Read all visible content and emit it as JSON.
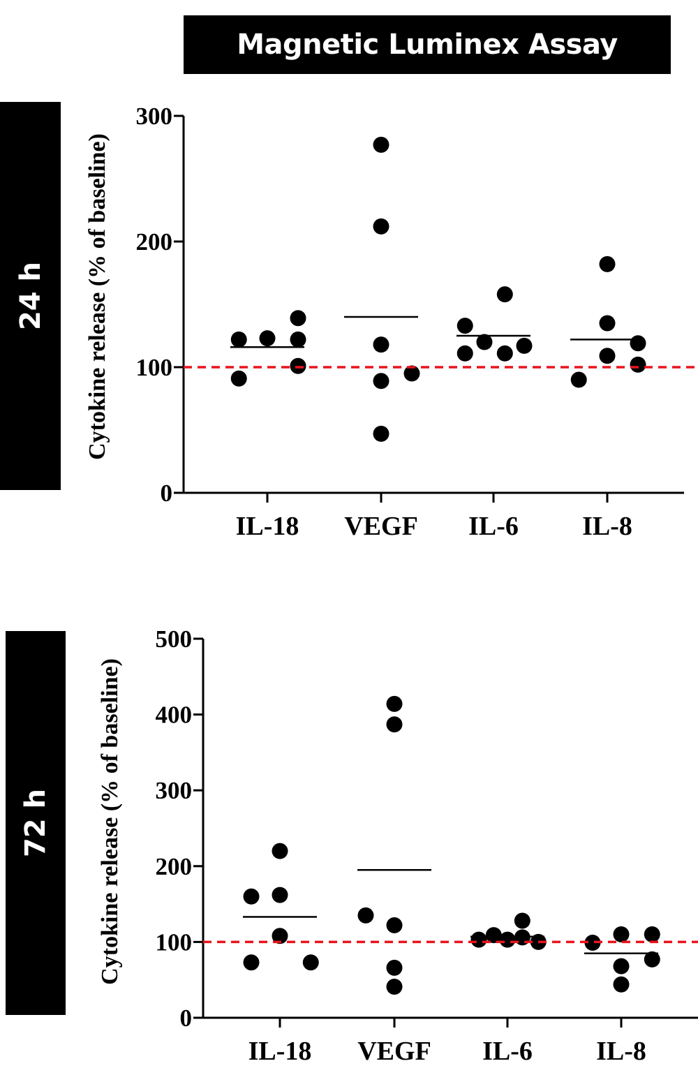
{
  "header": {
    "title": "Magnetic Luminex Assay"
  },
  "panels": [
    {
      "side_label": "24 h"
    },
    {
      "side_label": "72 h"
    }
  ],
  "colors": {
    "point": "#000000",
    "mean_line": "#000000",
    "baseline": "#e8141e"
  },
  "chart_data": [
    {
      "type": "scatter",
      "title": "24 h",
      "xlabel": "",
      "ylabel": "Cytokine release (% of baseline)",
      "ylim": [
        0,
        300
      ],
      "yticks": [
        0,
        100,
        200,
        300
      ],
      "categories": [
        "IL-18",
        "VEGF",
        "IL-6",
        "IL-8"
      ],
      "baseline": 100,
      "groups": [
        {
          "category": "IL-18",
          "points": [
            {
              "offset": -0.25,
              "value": 122
            },
            {
              "offset": 0.0,
              "value": 123
            },
            {
              "offset": 0.27,
              "value": 139
            },
            {
              "offset": 0.27,
              "value": 122
            },
            {
              "offset": -0.25,
              "value": 91
            },
            {
              "offset": 0.27,
              "value": 101
            }
          ],
          "mean": 116
        },
        {
          "category": "VEGF",
          "points": [
            {
              "offset": 0.0,
              "value": 277
            },
            {
              "offset": 0.0,
              "value": 212
            },
            {
              "offset": 0.0,
              "value": 118
            },
            {
              "offset": 0.0,
              "value": 89
            },
            {
              "offset": 0.27,
              "value": 95
            },
            {
              "offset": 0.0,
              "value": 47
            }
          ],
          "mean": 140
        },
        {
          "category": "IL-6",
          "points": [
            {
              "offset": 0.1,
              "value": 158
            },
            {
              "offset": -0.25,
              "value": 133
            },
            {
              "offset": -0.08,
              "value": 120
            },
            {
              "offset": 0.27,
              "value": 117
            },
            {
              "offset": -0.25,
              "value": 111
            },
            {
              "offset": 0.1,
              "value": 111
            }
          ],
          "mean": 125
        },
        {
          "category": "IL-8",
          "points": [
            {
              "offset": 0.0,
              "value": 182
            },
            {
              "offset": 0.0,
              "value": 135
            },
            {
              "offset": 0.27,
              "value": 119
            },
            {
              "offset": 0.0,
              "value": 109
            },
            {
              "offset": 0.27,
              "value": 102
            },
            {
              "offset": -0.25,
              "value": 90
            }
          ],
          "mean": 122
        }
      ]
    },
    {
      "type": "scatter",
      "title": "72 h",
      "xlabel": "",
      "ylabel": "Cytokine release (% of baseline)",
      "ylim": [
        0,
        500
      ],
      "yticks": [
        0,
        100,
        200,
        300,
        400,
        500
      ],
      "categories": [
        "IL-18",
        "VEGF",
        "IL-6",
        "IL-8"
      ],
      "baseline": 100,
      "groups": [
        {
          "category": "IL-18",
          "points": [
            {
              "offset": 0.0,
              "value": 220
            },
            {
              "offset": -0.25,
              "value": 160
            },
            {
              "offset": 0.0,
              "value": 162
            },
            {
              "offset": 0.0,
              "value": 108
            },
            {
              "offset": -0.25,
              "value": 73
            },
            {
              "offset": 0.27,
              "value": 73
            }
          ],
          "mean": 133
        },
        {
          "category": "VEGF",
          "points": [
            {
              "offset": 0.0,
              "value": 414
            },
            {
              "offset": 0.0,
              "value": 387
            },
            {
              "offset": -0.25,
              "value": 135
            },
            {
              "offset": 0.0,
              "value": 122
            },
            {
              "offset": 0.0,
              "value": 66
            },
            {
              "offset": 0.0,
              "value": 41
            }
          ],
          "mean": 195
        },
        {
          "category": "IL-6",
          "points": [
            {
              "offset": 0.13,
              "value": 128
            },
            {
              "offset": -0.12,
              "value": 109
            },
            {
              "offset": -0.25,
              "value": 103
            },
            {
              "offset": 0.0,
              "value": 103
            },
            {
              "offset": 0.13,
              "value": 106
            },
            {
              "offset": 0.27,
              "value": 100
            }
          ],
          "mean": 107
        },
        {
          "category": "IL-8",
          "points": [
            {
              "offset": -0.25,
              "value": 99
            },
            {
              "offset": 0.0,
              "value": 110
            },
            {
              "offset": 0.27,
              "value": 110
            },
            {
              "offset": 0.27,
              "value": 77
            },
            {
              "offset": 0.0,
              "value": 68
            },
            {
              "offset": 0.0,
              "value": 44
            }
          ],
          "mean": 85
        }
      ]
    }
  ]
}
